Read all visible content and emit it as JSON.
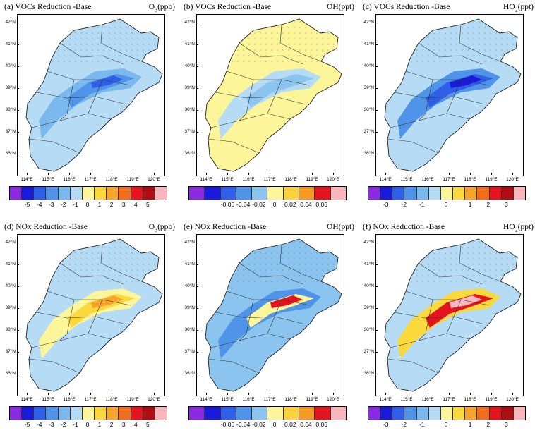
{
  "lat_labels": [
    "42°N",
    "41°N",
    "40°N",
    "39°N",
    "38°N",
    "37°N",
    "36°N"
  ],
  "lon_labels": [
    "114°E",
    "115°E",
    "116°E",
    "117°E",
    "118°E",
    "119°E",
    "120°E"
  ],
  "colorbars": {
    "o3": {
      "colors": [
        "#8a2be2",
        "#1a1adb",
        "#2f5fe8",
        "#4f94e8",
        "#7ab8ee",
        "#b5dcf4",
        "#fdf59a",
        "#fbd83c",
        "#f7a42a",
        "#f16f1c",
        "#e3141e",
        "#b00e12",
        "#f9b7bd"
      ],
      "labels": [
        "-5",
        "-4",
        "-3",
        "-2",
        "-1",
        "0",
        "1",
        "2",
        "3",
        "4",
        "5"
      ],
      "label_boundaries": [
        1,
        2,
        3,
        4,
        5,
        6,
        7,
        8,
        9,
        10,
        11
      ]
    },
    "oh": {
      "colors": [
        "#8a2be2",
        "#1a1adb",
        "#2f5fe8",
        "#4f94e8",
        "#8ac4ef",
        "#fdf59a",
        "#fbd23c",
        "#f59a22",
        "#e3141e",
        "#f9b7bd"
      ],
      "labels": [
        "-0.06",
        "-0.04",
        "-0.02",
        "0",
        "0.02",
        "0.04",
        "0.06"
      ],
      "label_boundaries": [
        2,
        3,
        4,
        5,
        6,
        7,
        8
      ]
    },
    "ho2": {
      "colors": [
        "#8a2be2",
        "#1a1adb",
        "#2f5fe8",
        "#4f94e8",
        "#7ab8ee",
        "#b5dcf4",
        "#fdf59a",
        "#fbd83c",
        "#f7a42a",
        "#f16f1c",
        "#e3141e",
        "#b00e12",
        "#f9b7bd"
      ],
      "labels": [
        "-3",
        "-2",
        "-1",
        "0",
        "1",
        "2",
        "3"
      ],
      "label_boundaries": [
        2,
        4,
        5,
        6,
        7,
        8,
        10,
        11
      ]
    }
  },
  "panels": [
    {
      "title": "(a) VOCs Reduction -Base",
      "var": "O",
      "var_sub": "3",
      "var_unit": "(ppb)",
      "bar": "o3",
      "fill": "#b5dcf4",
      "mid": "#7ab8ee",
      "core": "#4f94e8",
      "hot": "#2f5fe8"
    },
    {
      "title": "(b) VOCs Reduction -Base",
      "var": "OH",
      "var_sub": "",
      "var_unit": "(ppt)",
      "bar": "oh",
      "fill": "#fdf59a",
      "mid": "#b5dcf4",
      "core": "#8ac4ef",
      "hot": "#8ac4ef"
    },
    {
      "title": "(c) VOCs Reduction -Base",
      "var": "HO",
      "var_sub": "2",
      "var_unit": "(ppt)",
      "bar": "ho2",
      "fill": "#b5dcf4",
      "mid": "#4f94e8",
      "core": "#2f5fe8",
      "hot": "#1a1adb"
    },
    {
      "title": "(d) NOx Reduction -Base",
      "var": "O",
      "var_sub": "3",
      "var_unit": "(ppb)",
      "bar": "o3",
      "fill": "#b5dcf4",
      "mid": "#fdf59a",
      "core": "#fbd83c",
      "hot": "#f7a42a"
    },
    {
      "title": "(e) NOx Reduction -Base",
      "var": "OH",
      "var_sub": "",
      "var_unit": "(ppt)",
      "bar": "oh",
      "fill": "#8ac4ef",
      "mid": "#4f94e8",
      "core": "#fdf59a",
      "hot": "#e3141e"
    },
    {
      "title": "(f) NOx Reduction -Base",
      "var": "HO",
      "var_sub": "2",
      "var_unit": "(ppt)",
      "bar": "ho2",
      "fill": "#b5dcf4",
      "mid": "#fbd83c",
      "core": "#e3141e",
      "hot": "#f9b7bd"
    }
  ]
}
